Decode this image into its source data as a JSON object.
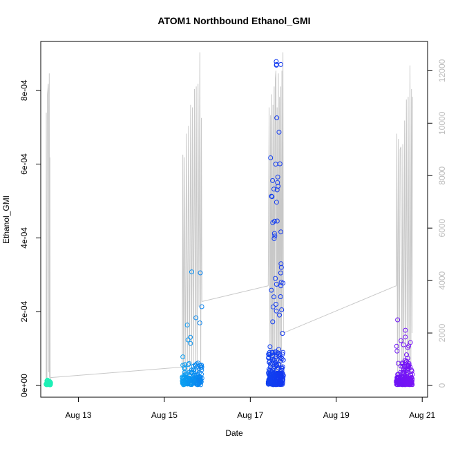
{
  "chart_data": {
    "type": "scatter",
    "title": "ATOM1 Northbound Ethanol_GMI",
    "xlabel": "Date",
    "ylabel": "Ethanol_GMI",
    "x_unit": "date",
    "xlim": [
      "2021-08-12T03:00",
      "2021-08-21T03:00"
    ],
    "ylim": [
      0,
      0.00091
    ],
    "y2lim": [
      0,
      12800
    ],
    "x_ticks": [
      {
        "value": "2021-08-13",
        "label": "Aug 13"
      },
      {
        "value": "2021-08-15",
        "label": "Aug 15"
      },
      {
        "value": "2021-08-17",
        "label": "Aug 17"
      },
      {
        "value": "2021-08-19",
        "label": "Aug 19"
      },
      {
        "value": "2021-08-21",
        "label": "Aug 21"
      }
    ],
    "y_ticks": [
      {
        "value": 0,
        "label": "0e+00"
      },
      {
        "value": 0.0002,
        "label": "2e-04"
      },
      {
        "value": 0.0004,
        "label": "4e-04"
      },
      {
        "value": 0.0006,
        "label": "6e-04"
      },
      {
        "value": 0.0008,
        "label": "8e-04"
      }
    ],
    "y2_ticks": [
      {
        "value": 0,
        "label": "0"
      },
      {
        "value": 2000,
        "label": "2000"
      },
      {
        "value": 4000,
        "label": "4000"
      },
      {
        "value": 6000,
        "label": "6000"
      },
      {
        "value": 8000,
        "label": "8000"
      },
      {
        "value": 10000,
        "label": "10000"
      },
      {
        "value": 12000,
        "label": "12000"
      }
    ],
    "grid": false,
    "colors": {
      "secondary_line": "#c8c8c8",
      "right_axis_text": "#bdbdbd",
      "axis": "#000000",
      "point_scale": [
        "#1ef0b4",
        "#14dcd2",
        "#0ab4f0",
        "#0a5af0",
        "#1432f0",
        "#5014f5",
        "#7814f5"
      ]
    },
    "clusters": [
      {
        "start": "2021-08-12T06:00",
        "end": "2021-08-12T08:30",
        "y_min": 2e-06,
        "y_max": 2.2e-05,
        "point_count": 90,
        "spike_y_max": 8.5e-06,
        "y2_trace": [
          [
            "2021-08-12T06:00",
            0
          ],
          [
            "2021-08-12T06:05",
            10400
          ],
          [
            "2021-08-12T06:10",
            500
          ],
          [
            "2021-08-12T06:25",
            200
          ],
          [
            "2021-08-12T06:40",
            11100
          ],
          [
            "2021-08-12T06:55",
            11250
          ],
          [
            "2021-08-12T07:10",
            11500
          ],
          [
            "2021-08-12T07:20",
            11100
          ],
          [
            "2021-08-12T07:30",
            500
          ],
          [
            "2021-08-12T07:45",
            11900
          ],
          [
            "2021-08-12T07:55",
            300
          ],
          [
            "2021-08-12T08:05",
            8700
          ],
          [
            "2021-08-12T08:15",
            400
          ],
          [
            "2021-08-12T08:25",
            200
          ],
          [
            "2021-08-12T08:30",
            300
          ]
        ]
      },
      {
        "start": "2021-08-15T10:00",
        "end": "2021-08-15T21:00",
        "y_min": 2e-06,
        "y_max": 0.00033,
        "point_count": 170,
        "spike_y_max": 6e-05,
        "y2_trace": [
          [
            "2021-08-15T10:00",
            700
          ],
          [
            "2021-08-15T10:20",
            8800
          ],
          [
            "2021-08-15T10:40",
            400
          ],
          [
            "2021-08-15T11:10",
            8700
          ],
          [
            "2021-08-15T11:40",
            300
          ],
          [
            "2021-08-15T12:20",
            9600
          ],
          [
            "2021-08-15T12:50",
            500
          ],
          [
            "2021-08-15T13:30",
            9900
          ],
          [
            "2021-08-15T14:00",
            300
          ],
          [
            "2021-08-15T14:40",
            10700
          ],
          [
            "2021-08-15T15:10",
            400
          ],
          [
            "2021-08-15T15:40",
            10600
          ],
          [
            "2021-08-15T16:10",
            300
          ],
          [
            "2021-08-15T16:50",
            11300
          ],
          [
            "2021-08-15T17:20",
            400
          ],
          [
            "2021-08-15T17:50",
            11400
          ],
          [
            "2021-08-15T18:20",
            500
          ],
          [
            "2021-08-15T18:50",
            11500
          ],
          [
            "2021-08-15T19:20",
            3000
          ],
          [
            "2021-08-15T19:50",
            12700
          ],
          [
            "2021-08-15T20:20",
            500
          ],
          [
            "2021-08-15T20:40",
            10200
          ],
          [
            "2021-08-15T21:00",
            3200
          ]
        ]
      },
      {
        "start": "2021-08-17T10:00",
        "end": "2021-08-17T18:30",
        "y_min": 2e-06,
        "y_max": 0.000878,
        "point_count": 260,
        "spike_y_max": 9e-05,
        "highlights": [
          [
            "2021-08-17T14:30",
            0.000878
          ],
          [
            "2021-08-17T14:40",
            0.00087
          ],
          [
            "2021-08-17T14:35",
            0.000868
          ],
          [
            "2021-08-17T14:10",
            0.0006
          ],
          [
            "2021-08-17T15:20",
            0.000565
          ],
          [
            "2021-08-17T15:10",
            0.00055
          ],
          [
            "2021-08-17T15:30",
            0.00054
          ],
          [
            "2021-08-17T15:00",
            0.00053
          ],
          [
            "2021-08-17T13:30",
            0.000412
          ],
          [
            "2021-08-17T13:20",
            0.000398
          ],
          [
            "2021-08-17T13:40",
            0.000405
          ],
          [
            "2021-08-17T17:10",
            0.00033
          ],
          [
            "2021-08-17T17:20",
            0.00032
          ],
          [
            "2021-08-17T17:00",
            0.000305
          ],
          [
            "2021-08-17T17:15",
            0.00028
          ],
          [
            "2021-08-17T17:05",
            0.00027
          ],
          [
            "2021-08-17T14:00",
            0.00029
          ],
          [
            "2021-08-17T17:30",
            0.000205
          ],
          [
            "2021-08-17T13:10",
            0.00024
          ],
          [
            "2021-08-17T14:20",
            0.00022
          ]
        ],
        "y2_trace": [
          [
            "2021-08-17T10:00",
            3800
          ],
          [
            "2021-08-17T10:30",
            10600
          ],
          [
            "2021-08-17T11:00",
            500
          ],
          [
            "2021-08-17T11:20",
            10300
          ],
          [
            "2021-08-17T11:40",
            400
          ],
          [
            "2021-08-17T12:00",
            11100
          ],
          [
            "2021-08-17T12:20",
            300
          ],
          [
            "2021-08-17T12:40",
            10700
          ],
          [
            "2021-08-17T13:00",
            400
          ],
          [
            "2021-08-17T13:20",
            11400
          ],
          [
            "2021-08-17T13:40",
            500
          ],
          [
            "2021-08-17T14:00",
            11700
          ],
          [
            "2021-08-17T14:20",
            12000
          ],
          [
            "2021-08-17T14:40",
            300
          ],
          [
            "2021-08-17T15:00",
            10600
          ],
          [
            "2021-08-17T15:20",
            400
          ],
          [
            "2021-08-17T15:40",
            11900
          ],
          [
            "2021-08-17T16:00",
            500
          ],
          [
            "2021-08-17T16:20",
            11000
          ],
          [
            "2021-08-17T16:40",
            300
          ],
          [
            "2021-08-17T17:00",
            11400
          ],
          [
            "2021-08-17T17:20",
            400
          ],
          [
            "2021-08-17T17:40",
            12000
          ],
          [
            "2021-08-17T18:00",
            2800
          ],
          [
            "2021-08-17T18:15",
            12700
          ],
          [
            "2021-08-17T18:30",
            2000
          ]
        ]
      },
      {
        "start": "2021-08-20T09:30",
        "end": "2021-08-20T18:30",
        "y_min": 2e-06,
        "y_max": 0.00018,
        "point_count": 200,
        "spike_y_max": 6e-05,
        "y2_trace": [
          [
            "2021-08-20T09:30",
            3800
          ],
          [
            "2021-08-20T09:50",
            9600
          ],
          [
            "2021-08-20T10:10",
            400
          ],
          [
            "2021-08-20T10:40",
            9400
          ],
          [
            "2021-08-20T11:10",
            300
          ],
          [
            "2021-08-20T11:40",
            9000
          ],
          [
            "2021-08-20T12:10",
            9100
          ],
          [
            "2021-08-20T12:40",
            300
          ],
          [
            "2021-08-20T13:10",
            9200
          ],
          [
            "2021-08-20T13:40",
            400
          ],
          [
            "2021-08-20T14:10",
            10100
          ],
          [
            "2021-08-20T14:40",
            300
          ],
          [
            "2021-08-20T15:10",
            10900
          ],
          [
            "2021-08-20T15:40",
            400
          ],
          [
            "2021-08-20T16:10",
            11000
          ],
          [
            "2021-08-20T16:40",
            300
          ],
          [
            "2021-08-20T17:10",
            12200
          ],
          [
            "2021-08-20T17:40",
            500
          ],
          [
            "2021-08-20T18:00",
            11300
          ],
          [
            "2021-08-20T18:20",
            2000
          ],
          [
            "2021-08-20T18:30",
            11000
          ]
        ]
      }
    ],
    "y2_connectors": [
      [
        "2021-08-12T08:30",
        300
      ],
      [
        "2021-08-15T10:00",
        700
      ],
      [
        "2021-08-15T21:00",
        3200
      ],
      [
        "2021-08-17T10:00",
        3800
      ],
      [
        "2021-08-17T18:30",
        2000
      ],
      [
        "2021-08-20T09:30",
        3800
      ]
    ]
  }
}
